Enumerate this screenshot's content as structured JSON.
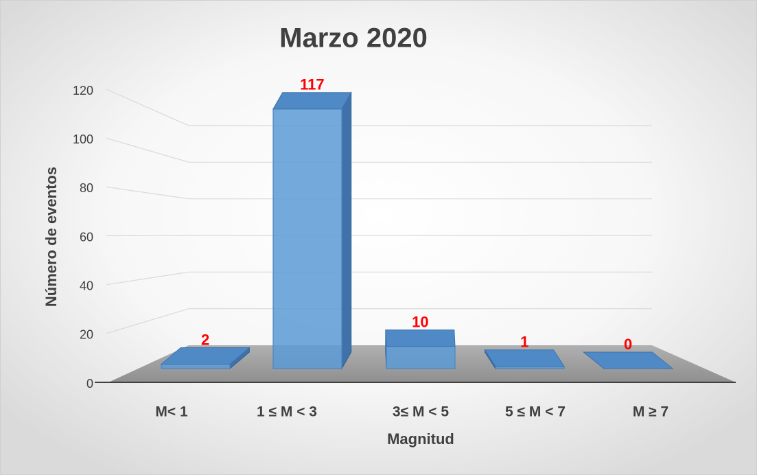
{
  "chart_data": {
    "type": "bar3d",
    "title": "Marzo 2020",
    "x_label": "Magnitud",
    "y_label": "Número de eventos",
    "categories": [
      "M< 1",
      "1 ≤ M < 3",
      "3≤ M < 5",
      "5 ≤ M < 7",
      "M ≥ 7"
    ],
    "values": [
      2,
      117,
      10,
      1,
      0
    ],
    "color": "#5b9bd5",
    "value_label_color": "#ff0000",
    "ylim": [
      0,
      120
    ],
    "yticks": [
      0,
      20,
      40,
      60,
      80,
      100,
      120
    ],
    "grid": true
  }
}
